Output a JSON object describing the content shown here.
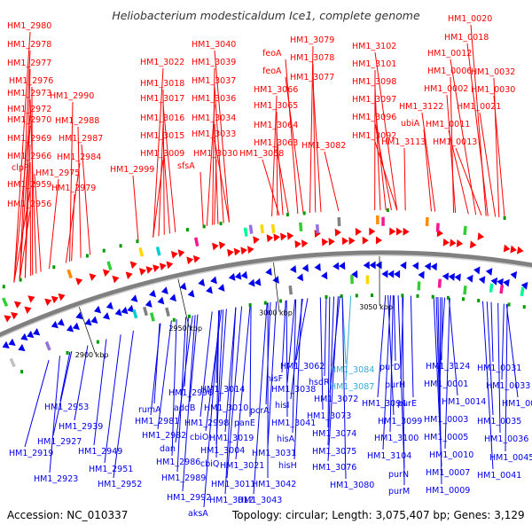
{
  "title": "Heliobacterium modesticaldum Ice1, complete genome",
  "footer": {
    "accession": "Accession: NC_010337",
    "topology": "Topology: circular; Length: 3,075,407 bp; Genes: 3,129"
  },
  "colors": {
    "forward": "#ff0000",
    "reverse": "#0000ee",
    "highlight": "#33aadd",
    "backbone": "#808080",
    "tick": "#009900"
  },
  "ticks": [
    "2900 kbp",
    "2950 kbp",
    "3000 kbp",
    "3050 kbp"
  ],
  "forward_labels": [
    "HM1_2980",
    "HM1_2978",
    "HM1_2977",
    "HM1_2976",
    "HM1_2973",
    "HM1_2972",
    "HM1_2970",
    "HM1_2969",
    "HM1_2966",
    "clpP",
    "HM1_2959",
    "HM1_2956",
    "HM1_2990",
    "HM1_2988",
    "HM1_2987",
    "HM1_2984",
    "HM1_2975",
    "HM1_2979",
    "HM1_2999",
    "HM1_3040",
    "HM1_3022",
    "HM1_3039",
    "HM1_3018",
    "HM1_3037",
    "HM1_3017",
    "HM1_3036",
    "HM1_3016",
    "HM1_3034",
    "HM1_3015",
    "HM1_3033",
    "HM1_3009",
    "HM1_3030",
    "sfsA",
    "feoA",
    "feoA",
    "HM1_3066",
    "HM1_3065",
    "HM1_3064",
    "HM1_3063",
    "HM1_3058",
    "HM1_3079",
    "HM1_3078",
    "HM1_3077",
    "HM1_3082",
    "HM1_3102",
    "HM1_3101",
    "HM1_3098",
    "HM1_3097",
    "HM1_3096",
    "HM1_3092",
    "HM1_3113",
    "ubiA",
    "HM1_0020",
    "HM1_0018",
    "HM1_0012",
    "HM1_0006",
    "HM1_0002",
    "HM1_3122",
    "HM1_0011",
    "HM1_0013",
    "HM1_0032",
    "HM1_0030",
    "HM1_0021"
  ],
  "reverse_labels": [
    "HM1_2953",
    "HM1_2939",
    "HM1_2927",
    "HM1_2919",
    "HM1_2923",
    "HM1_2949",
    "HM1_2951",
    "HM1_2952",
    "rumA",
    "HM1_2981",
    "HM1_2982",
    "dan",
    "HM1_2986",
    "HM1_2989",
    "HM1_2992",
    "aksA",
    "HM1_2996",
    "addB",
    "HM1_2998",
    "cbiO",
    "cbiQ",
    "HM1_3004",
    "HM1_3012",
    "HM1_3011",
    "HM1_3014",
    "HM1_3010",
    "HM1_3019",
    "HM1_3021",
    "panE",
    "pcrA",
    "HM1_3031",
    "HM1_3043",
    "HM1_3042",
    "hisF",
    "HM1_3038",
    "hisI",
    "HM1_3041",
    "hisA",
    "hisH",
    "HM1_3062",
    "HM1_3084",
    "hsdR",
    "HM1_3087",
    "HM1_3072",
    "HM1_3073",
    "HM1_3074",
    "HM1_3075",
    "HM1_3076",
    "HM1_3080",
    "purD",
    "purH",
    "HM1_3094",
    "HM1_3099",
    "purE",
    "HM1_3100",
    "HM1_3104",
    "purN",
    "purM",
    "HM1_3124",
    "HM1_0001",
    "HM1_0014",
    "HM1_0003",
    "HM1_0005",
    "HM1_0010",
    "HM1_0007",
    "HM1_0009",
    "HM1_0031",
    "HM1_0033",
    "HM1_0048",
    "HM1_0035",
    "HM1_0036",
    "HM1_0045",
    "HM1_0041"
  ]
}
